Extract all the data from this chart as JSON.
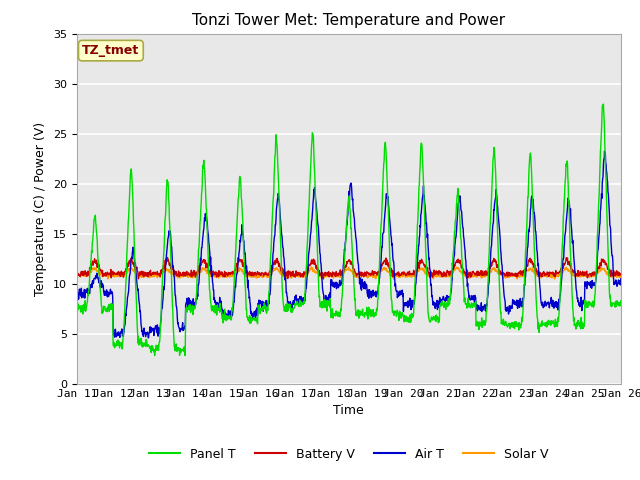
{
  "title": "Tonzi Tower Met: Temperature and Power",
  "xlabel": "Time",
  "ylabel": "Temperature (C) / Power (V)",
  "ylim": [
    0,
    35
  ],
  "colors": {
    "panel_t": "#00DD00",
    "battery_v": "#CC0000",
    "air_t": "#0000CC",
    "solar_v": "#FF9900"
  },
  "legend_labels": [
    "Panel T",
    "Battery V",
    "Air T",
    "Solar V"
  ],
  "annotation_text": "TZ_tmet",
  "annotation_color": "#880000",
  "annotation_bg": "#FFFFCC",
  "annotation_edge": "#AAAA44",
  "bg_color": "#E8E8E8",
  "grid_color": "#FFFFFF",
  "title_fontsize": 11,
  "axis_fontsize": 9,
  "tick_fontsize": 8,
  "legend_fontsize": 9,
  "n_days": 15,
  "pts_per_day": 96,
  "figsize": [
    6.4,
    4.8
  ],
  "dpi": 100,
  "x_tick_labels": [
    "Jan 11",
    "Jan 12",
    "Jan 13",
    "Jan 14",
    "Jan 15",
    "Jan 16",
    "Jan 17",
    "Jan 18",
    "Jan 19",
    "Jan 20",
    "Jan 21",
    "Jan 22",
    "Jan 23",
    "Jan 24",
    "Jan 25",
    "Jan 26"
  ],
  "panel_peaks": [
    17.5,
    23.0,
    22.0,
    23.5,
    22.0,
    26.0,
    26.5,
    19.5,
    25.5,
    25.5,
    20.0,
    25.0,
    24.5,
    23.5,
    30.0
  ],
  "panel_mins": [
    7.5,
    4.0,
    3.5,
    7.5,
    6.5,
    7.5,
    8.0,
    7.0,
    7.0,
    6.5,
    8.0,
    6.0,
    6.0,
    6.0,
    8.0
  ],
  "air_peaks": [
    11.0,
    14.0,
    16.0,
    17.5,
    16.0,
    19.5,
    20.0,
    20.5,
    19.5,
    20.0,
    19.5,
    20.0,
    19.5,
    19.0,
    24.0
  ],
  "air_mins": [
    9.0,
    5.0,
    5.5,
    8.0,
    7.0,
    8.0,
    8.5,
    10.0,
    9.0,
    8.0,
    8.5,
    7.5,
    8.0,
    8.0,
    10.0
  ]
}
